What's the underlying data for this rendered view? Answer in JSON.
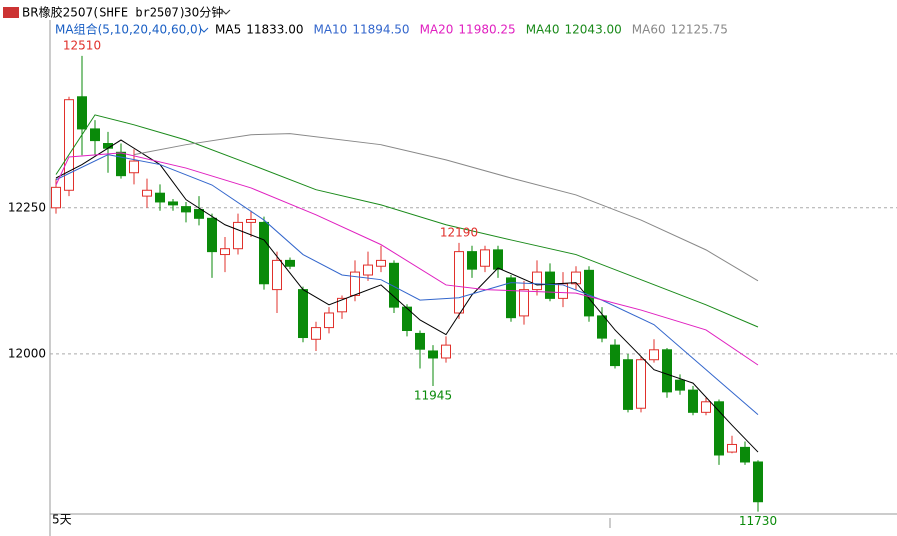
{
  "header": {
    "symbol": "BR橡胶2507",
    "code": "(SHFE br2507)",
    "period": "30分钟",
    "ma_group": "MA组合(5,10,20,40,60,0)"
  },
  "chart_data": {
    "type": "candlestick",
    "span_label": "5天",
    "ylim": [
      11726,
      12544
    ],
    "yticks": [
      12000,
      12250
    ],
    "grid": true,
    "up_color": "#e0302b",
    "down_color": "#0a8a0a",
    "open": [
      12250,
      12280,
      12440,
      12385,
      12360,
      12345,
      12310,
      12270,
      12275,
      12260,
      12252,
      12247,
      12232,
      12170,
      12180,
      12225,
      12225,
      12110,
      12160,
      12110,
      12025,
      12045,
      12072,
      12100,
      12135,
      12150,
      12155,
      12080,
      12035,
      12005,
      11993,
      12070,
      12175,
      12150,
      12178,
      12130,
      12065,
      12110,
      12140,
      12095,
      12120,
      12143,
      12065,
      12015,
      11990,
      11907,
      11990,
      12007,
      11955,
      11938,
      11900,
      11918,
      11832,
      11840,
      11815
    ],
    "high": [
      12300,
      12440,
      12510,
      12400,
      12380,
      12360,
      12350,
      12300,
      12290,
      12265,
      12260,
      12270,
      12240,
      12200,
      12240,
      12245,
      12235,
      12175,
      12165,
      12115,
      12055,
      12080,
      12100,
      12160,
      12175,
      12185,
      12160,
      12085,
      12040,
      12015,
      12030,
      12190,
      12185,
      12185,
      12185,
      12135,
      12125,
      12160,
      12155,
      12140,
      12150,
      12150,
      12080,
      12025,
      12000,
      11995,
      12025,
      12010,
      11965,
      11945,
      11925,
      11922,
      11860,
      11850,
      11818
    ],
    "low": [
      12240,
      12270,
      12340,
      12340,
      12310,
      12300,
      12290,
      12250,
      12245,
      12245,
      12225,
      12220,
      12130,
      12140,
      12170,
      12200,
      12110,
      12070,
      12145,
      12020,
      12005,
      12035,
      12060,
      12090,
      12125,
      12140,
      12070,
      12030,
      11975,
      11945,
      11985,
      12060,
      12130,
      12140,
      12130,
      12055,
      12050,
      12100,
      12090,
      12080,
      12110,
      12055,
      12020,
      11975,
      11900,
      11900,
      11985,
      11925,
      11930,
      11895,
      11895,
      11810,
      11830,
      11810,
      11730
    ],
    "close": [
      12285,
      12435,
      12385,
      12365,
      12352,
      12305,
      12330,
      12280,
      12260,
      12255,
      12243,
      12232,
      12175,
      12180,
      12225,
      12230,
      12120,
      12160,
      12150,
      12028,
      12045,
      12070,
      12095,
      12140,
      12152,
      12160,
      12080,
      12040,
      12008,
      11993,
      12015,
      12175,
      12145,
      12178,
      12145,
      12062,
      12110,
      12140,
      12095,
      12120,
      12140,
      12065,
      12027,
      11980,
      11905,
      11990,
      12007,
      11935,
      11938,
      11900,
      11918,
      11827,
      11845,
      11815,
      11747
    ],
    "series": [
      {
        "name": "MA5",
        "value_label": "11833.00",
        "color": "#000000",
        "x": [
          0,
          2,
          5,
          8,
          10,
          13,
          16,
          19,
          21,
          23,
          25,
          28,
          30,
          32,
          34,
          37,
          40,
          43,
          46,
          49,
          52,
          54
        ],
        "values": [
          12301,
          12324,
          12366,
          12324,
          12264,
          12221,
          12195,
          12110,
          12084,
          12101,
          12118,
          12058,
          12033,
          12101,
          12147,
          12118,
          12122,
          12041,
          11973,
          11950,
          11878,
          11832
        ]
      },
      {
        "name": "MA10",
        "value_label": "11894.50",
        "color": "#3366cc",
        "x": [
          0,
          4,
          8,
          12,
          16,
          19,
          22,
          25,
          28,
          31,
          35,
          39,
          42,
          46,
          50,
          54
        ],
        "values": [
          12298,
          12341,
          12324,
          12289,
          12229,
          12170,
          12135,
          12127,
          12092,
          12096,
          12122,
          12118,
          12092,
          12050,
          11973,
          11896
        ]
      },
      {
        "name": "MA20",
        "value_label": "11980.25",
        "color": "#e020c0",
        "x": [
          0,
          1,
          5,
          10,
          15,
          20,
          25,
          30,
          33,
          40,
          45,
          50,
          54
        ],
        "values": [
          12289,
          12337,
          12344,
          12318,
          12284,
          12238,
          12187,
          12118,
          12110,
          12104,
          12075,
          12041,
          11981
        ]
      },
      {
        "name": "MA40",
        "value_label": "12043.00",
        "color": "#1a8a1a",
        "x": [
          0,
          3,
          6,
          10,
          15,
          20,
          25,
          30,
          35,
          40,
          45,
          50,
          54
        ],
        "values": [
          12307,
          12409,
          12392,
          12366,
          12324,
          12281,
          12255,
          12221,
          12195,
          12170,
          12127,
          12084,
          12046
        ]
      },
      {
        "name": "MA60",
        "value_label": "12125.75",
        "color": "#888888",
        "x": [
          6,
          10,
          15,
          18,
          25,
          30,
          35,
          40,
          45,
          50,
          54
        ],
        "values": [
          12341,
          12358,
          12375,
          12377,
          12358,
          12332,
          12301,
          12272,
          12229,
          12178,
          12125
        ]
      }
    ]
  }
}
